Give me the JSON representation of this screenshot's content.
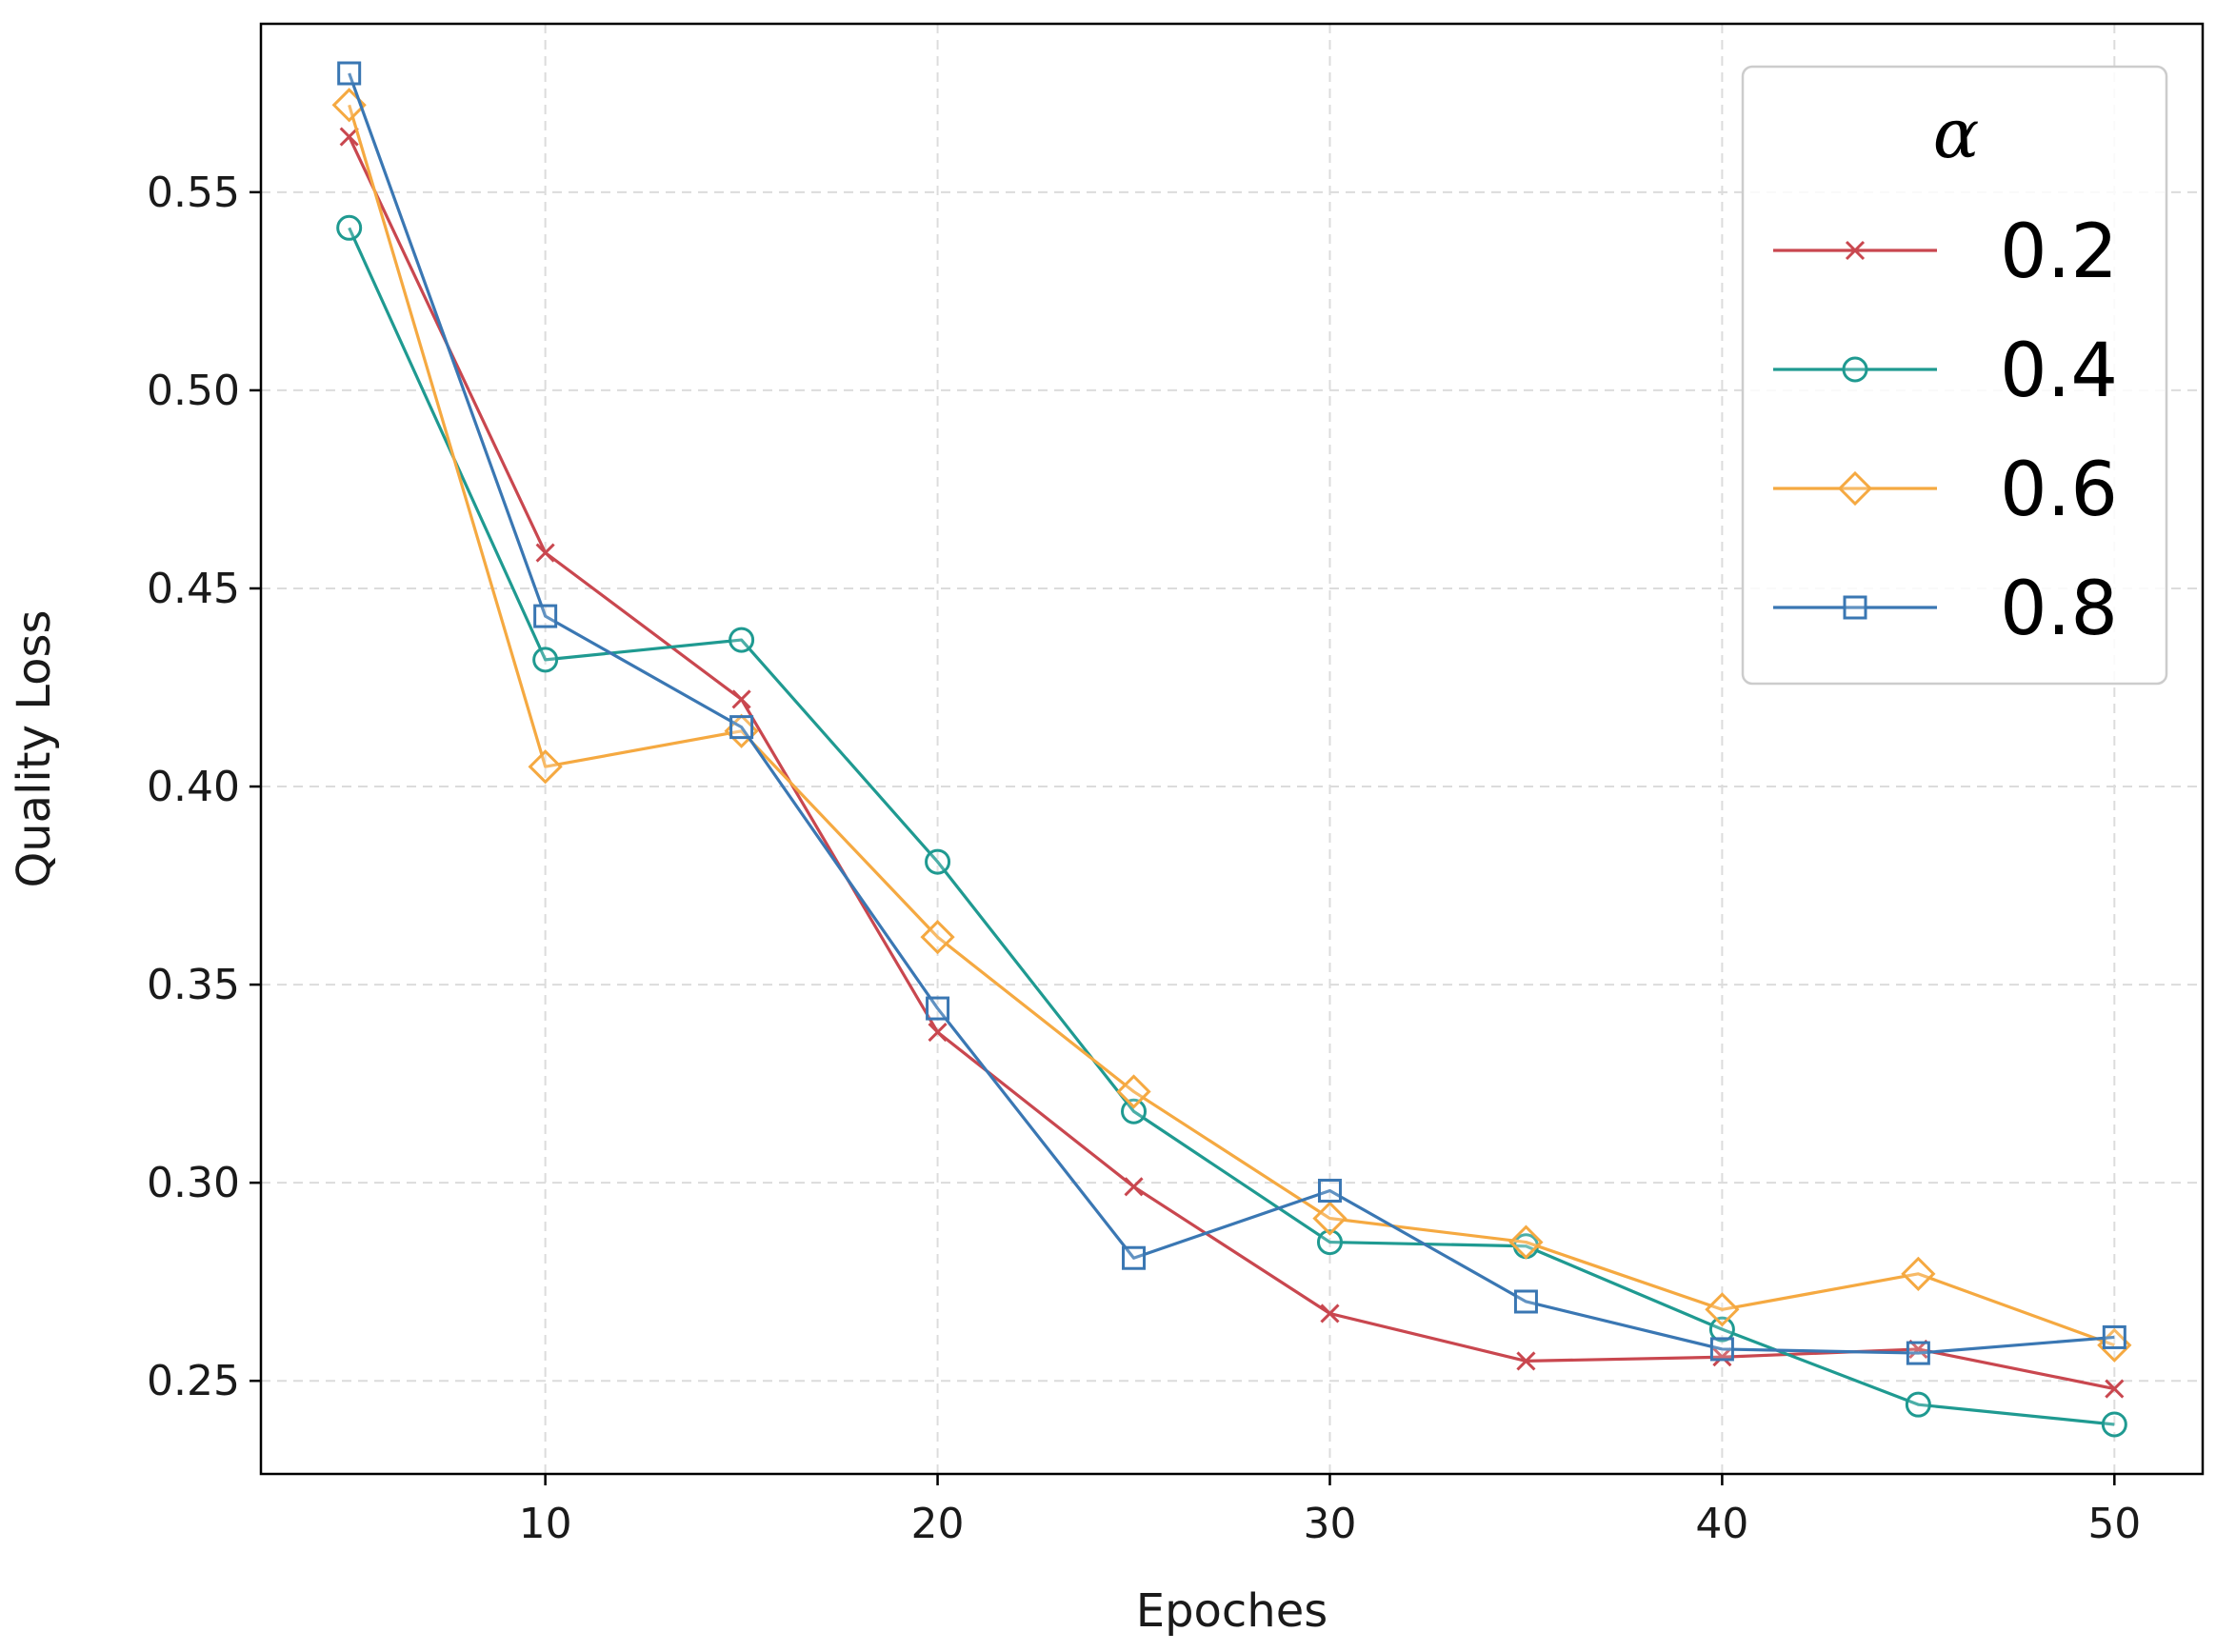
{
  "chart_data": {
    "type": "line",
    "title": "",
    "xlabel": "Epoches",
    "ylabel": "Quality Loss",
    "x": [
      5,
      10,
      15,
      20,
      25,
      30,
      35,
      40,
      45,
      50
    ],
    "xlim": [
      2.75,
      52.25
    ],
    "ylim": [
      0.2265,
      0.5925
    ],
    "xticks": [
      10,
      20,
      30,
      40,
      50
    ],
    "xtick_labels": [
      "10",
      "20",
      "30",
      "40",
      "50"
    ],
    "yticks": [
      0.25,
      0.3,
      0.35,
      0.4,
      0.45,
      0.5,
      0.55
    ],
    "ytick_labels": [
      "0.25",
      "0.30",
      "0.35",
      "0.40",
      "0.45",
      "0.50",
      "0.55"
    ],
    "grid": true,
    "legend": {
      "title": "α",
      "position": "top-right"
    },
    "series": [
      {
        "name": "0.2",
        "color": "#c9474f",
        "marker": "x",
        "values": [
          0.564,
          0.459,
          0.422,
          0.338,
          0.299,
          0.267,
          0.255,
          0.256,
          0.258,
          0.248
        ]
      },
      {
        "name": "0.4",
        "color": "#1f9a91",
        "marker": "circle",
        "values": [
          0.541,
          0.432,
          0.437,
          0.381,
          0.318,
          0.285,
          0.284,
          0.263,
          0.244,
          0.239
        ]
      },
      {
        "name": "0.6",
        "color": "#f5a941",
        "marker": "diamond",
        "values": [
          0.572,
          0.405,
          0.414,
          0.362,
          0.323,
          0.291,
          0.285,
          0.268,
          0.277,
          0.259
        ]
      },
      {
        "name": "0.8",
        "color": "#3a77b3",
        "marker": "square",
        "values": [
          0.58,
          0.443,
          0.415,
          0.344,
          0.281,
          0.298,
          0.27,
          0.258,
          0.257,
          0.261
        ]
      }
    ]
  }
}
